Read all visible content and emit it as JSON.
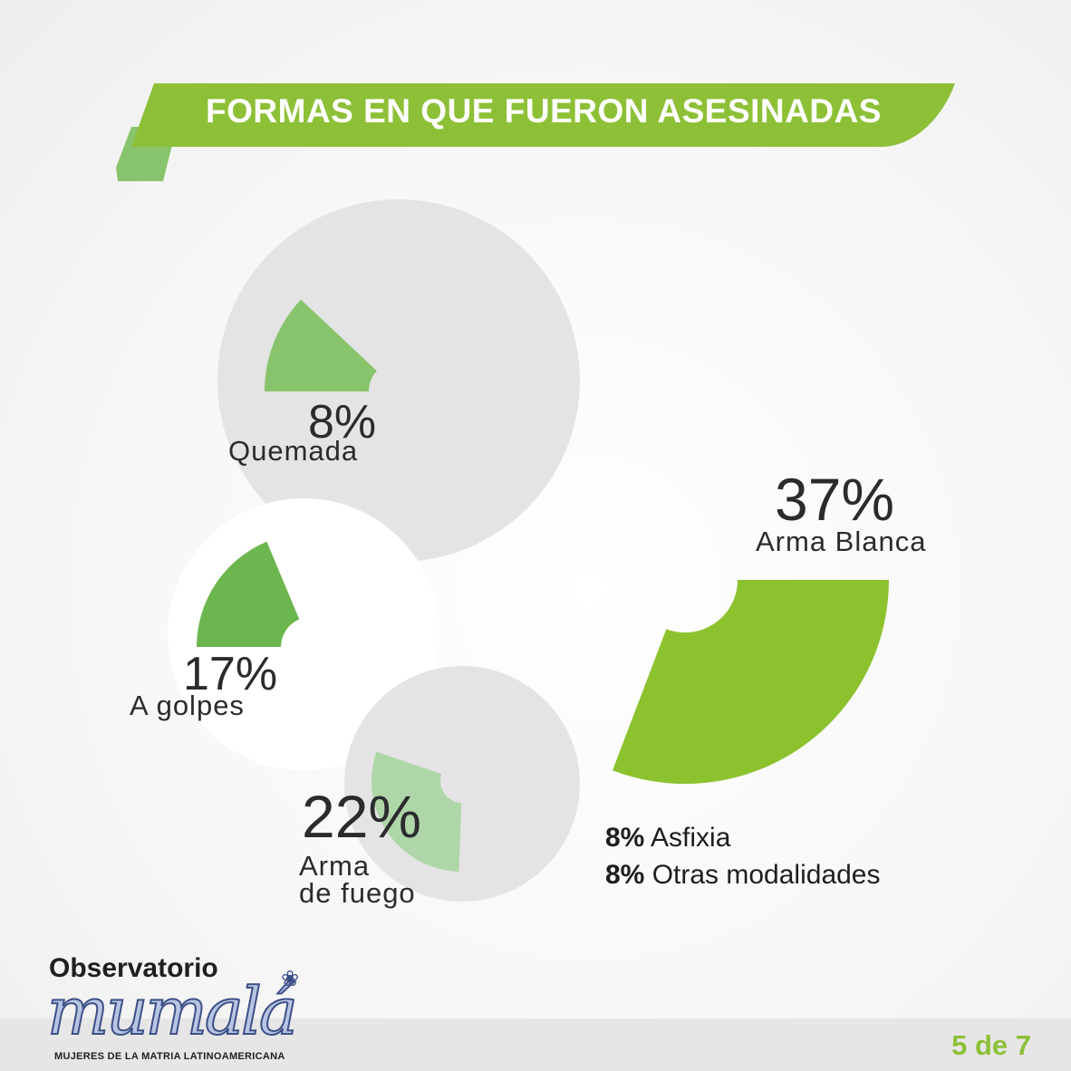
{
  "header": {
    "title": "FORMAS EN QUE FUERON ASESINADAS"
  },
  "chart_data": {
    "type": "pie",
    "title": "FORMAS EN QUE FUERON ASESINADAS",
    "slices": [
      {
        "label": "Quemada",
        "value": 8,
        "display": "8%",
        "color": "#88c46b"
      },
      {
        "label": "Arma Blanca",
        "value": 37,
        "display": "37%",
        "color": "#8dc22f"
      },
      {
        "label": "A golpes",
        "value": 17,
        "display": "17%",
        "color": "#6bb64e"
      },
      {
        "label": "Arma de fuego",
        "value": 22,
        "display": "22%",
        "color": "#afd6a8"
      },
      {
        "label": "Asfixia",
        "value": 8,
        "display": "8%"
      },
      {
        "label": "Otras modalidades",
        "value": 8,
        "display": "8%"
      }
    ]
  },
  "labels": {
    "quemada_pct": "8%",
    "quemada": "Quemada",
    "arma_blanca_pct": "37%",
    "arma_blanca": "Arma Blanca",
    "golpes_pct": "17%",
    "golpes": "A golpes",
    "fuego_pct": "22%",
    "fuego_line1": "Arma",
    "fuego_line2": "de fuego",
    "asfixia_pct": "8%",
    "asfixia": "Asfixia",
    "otras_pct": "8%",
    "otras": "Otras modalidades"
  },
  "logo": {
    "observatorio": "Observatorio",
    "mumala": "mumalá",
    "subtitle": "MUJERES DE LA MATRIA LATINOAMERICANA"
  },
  "footer": {
    "page": "5 de 7"
  },
  "colors": {
    "brand_green": "#8dc037",
    "bg_circle": "#e3e3e3",
    "text_dark": "#2b2b2e"
  }
}
